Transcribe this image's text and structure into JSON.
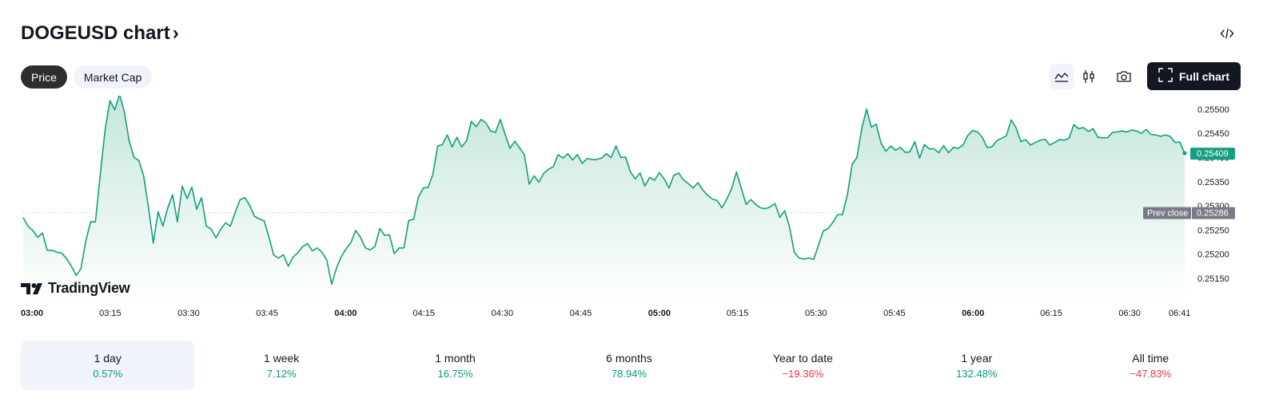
{
  "header": {
    "title": "DOGEUSD chart",
    "chevron": "›"
  },
  "tabs": [
    {
      "label": "Price",
      "active": true
    },
    {
      "label": "Market Cap",
      "active": false
    }
  ],
  "toolbar": {
    "icons": [
      "area-chart-icon",
      "candles-icon",
      "camera-icon",
      "code-embed-icon",
      "fullscreen-icon"
    ],
    "full_chart_label": "Full chart"
  },
  "logo": {
    "text": "TradingView"
  },
  "colors": {
    "line": "#139f7e",
    "area_top": "#c3e6da",
    "area_bottom": "#ffffff",
    "neg": "#f23645",
    "pos": "#089981",
    "prev_close_bg": "#787b86"
  },
  "chart_data": {
    "type": "area",
    "symbol": "DOGEUSD",
    "x_ticks": [
      {
        "label": "03:00",
        "bold": true
      },
      {
        "label": "03:15",
        "bold": false
      },
      {
        "label": "03:30",
        "bold": false
      },
      {
        "label": "03:45",
        "bold": false
      },
      {
        "label": "04:00",
        "bold": true
      },
      {
        "label": "04:15",
        "bold": false
      },
      {
        "label": "04:30",
        "bold": false
      },
      {
        "label": "04:45",
        "bold": false
      },
      {
        "label": "05:00",
        "bold": true
      },
      {
        "label": "05:15",
        "bold": false
      },
      {
        "label": "05:30",
        "bold": false
      },
      {
        "label": "05:45",
        "bold": false
      },
      {
        "label": "06:00",
        "bold": true
      },
      {
        "label": "06:15",
        "bold": false
      },
      {
        "label": "06:30",
        "bold": false
      },
      {
        "label": "06:41",
        "bold": false
      }
    ],
    "y_ticks": [
      "0.25150",
      "0.25200",
      "0.25250",
      "0.25300",
      "0.25350",
      "0.25400",
      "0.25450",
      "0.25500"
    ],
    "ylim": [
      0.25102,
      0.25528
    ],
    "last_price": "0.25409",
    "last_value": 0.25409,
    "prev_close_label": "Prev close",
    "prev_close": "0.25286",
    "prev_close_value": 0.25286,
    "values": [
      0.25276,
      0.25258,
      0.25249,
      0.25235,
      0.25244,
      0.25208,
      0.25208,
      0.25204,
      0.25202,
      0.25191,
      0.25175,
      0.25156,
      0.2517,
      0.25228,
      0.25267,
      0.25267,
      0.25366,
      0.25458,
      0.25518,
      0.25499,
      0.25531,
      0.25494,
      0.25434,
      0.254,
      0.25394,
      0.25362,
      0.25296,
      0.25223,
      0.25288,
      0.25258,
      0.25296,
      0.25323,
      0.25267,
      0.25341,
      0.25315,
      0.25339,
      0.25293,
      0.25317,
      0.25258,
      0.25252,
      0.25234,
      0.25252,
      0.25265,
      0.25258,
      0.25287,
      0.25313,
      0.25317,
      0.25301,
      0.25278,
      0.25273,
      0.25269,
      0.25235,
      0.25198,
      0.25192,
      0.25199,
      0.25175,
      0.25194,
      0.25203,
      0.25216,
      0.25222,
      0.25207,
      0.25213,
      0.25204,
      0.25188,
      0.25138,
      0.25171,
      0.25195,
      0.25211,
      0.25224,
      0.25249,
      0.25235,
      0.25213,
      0.25209,
      0.25216,
      0.25253,
      0.25239,
      0.2524,
      0.25201,
      0.25213,
      0.25213,
      0.2527,
      0.25272,
      0.25318,
      0.25337,
      0.25338,
      0.25365,
      0.25424,
      0.25427,
      0.25447,
      0.25422,
      0.25442,
      0.25422,
      0.25435,
      0.25475,
      0.25464,
      0.25479,
      0.25472,
      0.25455,
      0.25452,
      0.25479,
      0.25448,
      0.25419,
      0.25434,
      0.2542,
      0.25406,
      0.25345,
      0.25362,
      0.25349,
      0.25367,
      0.25376,
      0.25381,
      0.25406,
      0.25399,
      0.25408,
      0.25395,
      0.25406,
      0.25388,
      0.25398,
      0.25396,
      0.25396,
      0.25399,
      0.25408,
      0.254,
      0.25424,
      0.254,
      0.25401,
      0.2537,
      0.25356,
      0.25368,
      0.25341,
      0.25359,
      0.25353,
      0.25369,
      0.25356,
      0.25337,
      0.25363,
      0.25368,
      0.25354,
      0.25346,
      0.25337,
      0.25348,
      0.25333,
      0.25322,
      0.25314,
      0.25311,
      0.25296,
      0.25314,
      0.25336,
      0.2537,
      0.25337,
      0.25303,
      0.25313,
      0.25303,
      0.25296,
      0.25294,
      0.25298,
      0.25305,
      0.25276,
      0.2529,
      0.25257,
      0.25204,
      0.25192,
      0.2519,
      0.25192,
      0.25189,
      0.25218,
      0.25248,
      0.25253,
      0.25266,
      0.25282,
      0.25282,
      0.25322,
      0.25386,
      0.254,
      0.25461,
      0.255,
      0.25463,
      0.25469,
      0.2543,
      0.25413,
      0.25424,
      0.25415,
      0.25421,
      0.25411,
      0.25412,
      0.25433,
      0.25399,
      0.25427,
      0.25418,
      0.25418,
      0.2541,
      0.25425,
      0.2541,
      0.25421,
      0.25419,
      0.25426,
      0.25446,
      0.25456,
      0.25453,
      0.25442,
      0.25421,
      0.25422,
      0.25435,
      0.2544,
      0.25445,
      0.25478,
      0.25462,
      0.25433,
      0.25437,
      0.25426,
      0.25431,
      0.25436,
      0.25438,
      0.25426,
      0.25431,
      0.25437,
      0.25436,
      0.2544,
      0.25468,
      0.2546,
      0.25462,
      0.25454,
      0.2546,
      0.25442,
      0.25441,
      0.25441,
      0.25452,
      0.25453,
      0.25455,
      0.25453,
      0.25457,
      0.25455,
      0.2545,
      0.25458,
      0.25448,
      0.25447,
      0.25444,
      0.25447,
      0.25444,
      0.25431,
      0.25432,
      0.25409
    ]
  },
  "periods": [
    {
      "label": "1 day",
      "change": "0.57%",
      "positive": true,
      "active": true
    },
    {
      "label": "1 week",
      "change": "7.12%",
      "positive": true,
      "active": false
    },
    {
      "label": "1 month",
      "change": "16.75%",
      "positive": true,
      "active": false
    },
    {
      "label": "6 months",
      "change": "78.94%",
      "positive": true,
      "active": false
    },
    {
      "label": "Year to date",
      "change": "−19.36%",
      "positive": false,
      "active": false
    },
    {
      "label": "1 year",
      "change": "132.48%",
      "positive": true,
      "active": false
    },
    {
      "label": "All time",
      "change": "−47.83%",
      "positive": false,
      "active": false
    }
  ]
}
